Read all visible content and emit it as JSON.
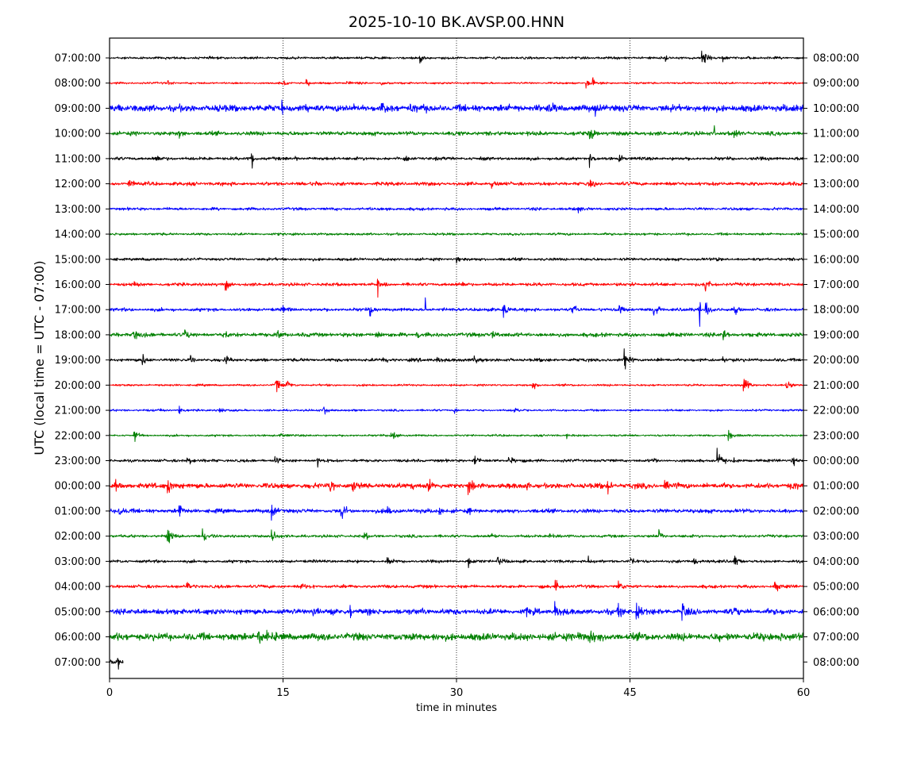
{
  "chart_data": {
    "type": "line",
    "title": "2025-10-10 BK.AVSP.00.HNN",
    "xlabel": "time in minutes",
    "ylabel": "UTC (local time = UTC - 07:00)",
    "xlim": [
      0,
      60
    ],
    "xticks": [
      0,
      15,
      30,
      45,
      60
    ],
    "xtick_labels": [
      "0",
      "15",
      "30",
      "45",
      "60"
    ],
    "grid": "vertical dotted at 15, 30, 45",
    "color_cycle": [
      "#000000",
      "#ff0000",
      "#0000ff",
      "#008000"
    ],
    "rows": [
      {
        "left": "07:00:00",
        "right": "08:00:00",
        "noise": 0.06,
        "events": [
          [
            26.8,
            0.3
          ],
          [
            33.4,
            0.15
          ],
          [
            48,
            0.3
          ],
          [
            51.2,
            0.55
          ],
          [
            51.5,
            0.4
          ],
          [
            53,
            0.2
          ],
          [
            55,
            0.15
          ]
        ]
      },
      {
        "left": "08:00:00",
        "right": "09:00:00",
        "noise": 0.05,
        "events": [
          [
            5,
            0.2
          ],
          [
            15,
            0.2
          ],
          [
            17,
            0.25
          ],
          [
            20.5,
            0.2
          ],
          [
            23.5,
            0.2
          ],
          [
            41.2,
            0.3
          ],
          [
            41.8,
            1.0
          ]
        ]
      },
      {
        "left": "09:00:00",
        "right": "10:00:00",
        "noise": 0.17,
        "events": [
          [
            0.8,
            0.3
          ],
          [
            14.9,
            1.0
          ],
          [
            21,
            0.4
          ],
          [
            23.5,
            0.6
          ],
          [
            26,
            0.4
          ],
          [
            38,
            0.4
          ],
          [
            42,
            0.4
          ],
          [
            59,
            0.3
          ]
        ]
      },
      {
        "left": "10:00:00",
        "right": "11:00:00",
        "noise": 0.1,
        "events": [
          [
            6,
            0.3
          ],
          [
            29.8,
            0.3
          ],
          [
            41.5,
            0.6
          ],
          [
            52.3,
            1.0
          ],
          [
            54,
            0.4
          ]
        ]
      },
      {
        "left": "11:00:00",
        "right": "12:00:00",
        "noise": 0.08,
        "events": [
          [
            4,
            0.3
          ],
          [
            12.3,
            2.1
          ],
          [
            16,
            0.2
          ],
          [
            25.5,
            0.2
          ],
          [
            41.5,
            0.35
          ],
          [
            44,
            0.3
          ]
        ]
      },
      {
        "left": "12:00:00",
        "right": "13:00:00",
        "noise": 0.09,
        "events": [
          [
            1.6,
            0.5
          ],
          [
            17.8,
            0.2
          ],
          [
            33,
            0.2
          ],
          [
            41.5,
            0.3
          ]
        ]
      },
      {
        "left": "13:00:00",
        "right": "14:00:00",
        "noise": 0.07,
        "events": [
          [
            24,
            0.15
          ],
          [
            40.5,
            0.35
          ]
        ]
      },
      {
        "left": "14:00:00",
        "right": "15:00:00",
        "noise": 0.06,
        "events": [
          [
            44.5,
            0.1
          ]
        ]
      },
      {
        "left": "15:00:00",
        "right": "16:00:00",
        "noise": 0.07,
        "events": [
          [
            30,
            0.2
          ],
          [
            52.5,
            0.15
          ]
        ]
      },
      {
        "left": "16:00:00",
        "right": "17:00:00",
        "noise": 0.08,
        "events": [
          [
            2,
            0.25
          ],
          [
            10,
            0.4
          ],
          [
            23.2,
            1.1
          ],
          [
            30.5,
            0.2
          ],
          [
            45,
            0.25
          ],
          [
            51.5,
            0.5
          ]
        ]
      },
      {
        "left": "17:00:00",
        "right": "18:00:00",
        "noise": 0.08,
        "events": [
          [
            15,
            0.3
          ],
          [
            22.5,
            0.4
          ],
          [
            27.3,
            0.9
          ],
          [
            34,
            0.5
          ],
          [
            40,
            0.5
          ],
          [
            44,
            0.6
          ],
          [
            47,
            0.6
          ],
          [
            51,
            2.2
          ],
          [
            51.5,
            0.8
          ],
          [
            54,
            0.3
          ]
        ]
      },
      {
        "left": "18:00:00",
        "right": "19:00:00",
        "noise": 0.1,
        "events": [
          [
            2,
            0.4
          ],
          [
            6.5,
            0.3
          ],
          [
            10,
            0.3
          ],
          [
            14.5,
            0.4
          ],
          [
            23,
            0.4
          ],
          [
            26.5,
            0.3
          ],
          [
            33,
            0.4
          ],
          [
            53,
            0.5
          ]
        ]
      },
      {
        "left": "19:00:00",
        "right": "20:00:00",
        "noise": 0.08,
        "events": [
          [
            2.8,
            0.35
          ],
          [
            7,
            0.3
          ],
          [
            10,
            0.4
          ],
          [
            23.5,
            0.4
          ],
          [
            28.3,
            0.3
          ],
          [
            31.5,
            0.4
          ],
          [
            44.5,
            0.6
          ],
          [
            53,
            0.2
          ]
        ]
      },
      {
        "left": "20:00:00",
        "right": "21:00:00",
        "noise": 0.05,
        "events": [
          [
            14.3,
            0.6
          ],
          [
            15.3,
            0.3
          ],
          [
            36.5,
            0.4
          ],
          [
            54.8,
            0.6
          ],
          [
            58.5,
            0.5
          ]
        ]
      },
      {
        "left": "21:00:00",
        "right": "22:00:00",
        "noise": 0.05,
        "events": [
          [
            4,
            0.3
          ],
          [
            6,
            0.3
          ],
          [
            9.5,
            0.2
          ],
          [
            18.5,
            0.4
          ],
          [
            29.8,
            0.2
          ],
          [
            35,
            0.2
          ]
        ]
      },
      {
        "left": "22:00:00",
        "right": "23:00:00",
        "noise": 0.05,
        "events": [
          [
            2,
            0.5
          ],
          [
            14.7,
            0.2
          ],
          [
            24.3,
            0.5
          ],
          [
            39.5,
            0.2
          ],
          [
            53.5,
            0.4
          ]
        ]
      },
      {
        "left": "23:00:00",
        "right": "00:00:00",
        "noise": 0.07,
        "events": [
          [
            6.7,
            0.4
          ],
          [
            14.3,
            0.3
          ],
          [
            18,
            1.0
          ],
          [
            31.5,
            0.5
          ],
          [
            34.5,
            0.4
          ],
          [
            47,
            0.3
          ],
          [
            52.5,
            0.7
          ],
          [
            54,
            0.3
          ],
          [
            59,
            0.4
          ]
        ]
      },
      {
        "left": "00:00:00",
        "right": "01:00:00",
        "noise": 0.13,
        "events": [
          [
            0.5,
            0.4
          ],
          [
            5,
            0.6
          ],
          [
            19,
            0.5
          ],
          [
            21,
            0.7
          ],
          [
            26,
            0.4
          ],
          [
            27.5,
            0.4
          ],
          [
            31,
            0.5
          ],
          [
            36,
            0.5
          ],
          [
            43,
            0.6
          ],
          [
            48,
            0.4
          ],
          [
            59,
            0.3
          ]
        ]
      },
      {
        "left": "01:00:00",
        "right": "02:00:00",
        "noise": 0.1,
        "events": [
          [
            0.8,
            0.4
          ],
          [
            6,
            0.6
          ],
          [
            14,
            0.6
          ],
          [
            20,
            0.6
          ],
          [
            24,
            0.4
          ],
          [
            28.5,
            0.3
          ],
          [
            31,
            0.2
          ]
        ]
      },
      {
        "left": "02:00:00",
        "right": "03:00:00",
        "noise": 0.07,
        "events": [
          [
            5,
            0.6
          ],
          [
            8,
            0.6
          ],
          [
            14,
            0.5
          ],
          [
            22,
            0.3
          ],
          [
            33,
            0.3
          ],
          [
            38,
            0.35
          ],
          [
            47.5,
            0.4
          ]
        ]
      },
      {
        "left": "03:00:00",
        "right": "04:00:00",
        "noise": 0.07,
        "events": [
          [
            24,
            0.3
          ],
          [
            31,
            0.5
          ],
          [
            33.5,
            0.5
          ],
          [
            41.4,
            1.0
          ],
          [
            45,
            0.3
          ],
          [
            50.5,
            0.4
          ],
          [
            54,
            0.4
          ]
        ]
      },
      {
        "left": "04:00:00",
        "right": "05:00:00",
        "noise": 0.08,
        "events": [
          [
            6.6,
            0.4
          ],
          [
            16.5,
            0.3
          ],
          [
            38.5,
            0.4
          ],
          [
            44,
            0.3
          ],
          [
            57.5,
            0.4
          ]
        ]
      },
      {
        "left": "05:00:00",
        "right": "06:00:00",
        "noise": 0.14,
        "events": [
          [
            17.5,
            0.4
          ],
          [
            20.8,
            0.9
          ],
          [
            27,
            0.3
          ],
          [
            36,
            0.4
          ],
          [
            38.5,
            0.6
          ],
          [
            44,
            0.6
          ],
          [
            45.5,
            0.7
          ],
          [
            49.5,
            0.7
          ],
          [
            54,
            0.3
          ]
        ]
      },
      {
        "left": "06:00:00",
        "right": "07:00:00",
        "noise": 0.18,
        "events": [
          [
            12.8,
            0.8
          ],
          [
            13.5,
            0.5
          ],
          [
            26,
            0.4
          ],
          [
            40.5,
            0.4
          ],
          [
            41.4,
            0.8
          ],
          [
            52.5,
            0.4
          ],
          [
            58,
            0.3
          ]
        ]
      },
      {
        "left": "07:00:00",
        "right": "08:00:00",
        "noise": 0.12,
        "duration": 1.2,
        "events": [
          [
            0.6,
            0.5
          ]
        ]
      }
    ]
  }
}
